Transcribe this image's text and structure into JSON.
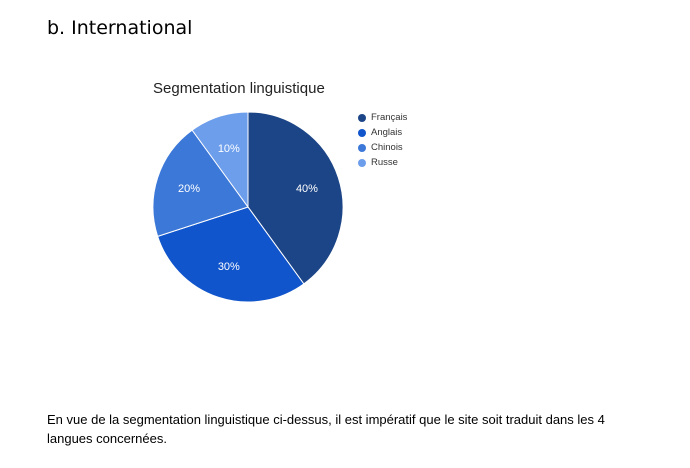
{
  "heading": "b. International",
  "chart_data": {
    "type": "pie",
    "title": "Segmentation linguistique",
    "categories": [
      "Français",
      "Anglais",
      "Chinois",
      "Russe"
    ],
    "values": [
      40,
      30,
      20,
      10
    ],
    "labels": [
      "40%",
      "30%",
      "20%",
      "10%"
    ],
    "colors": [
      "#1c4587",
      "#1155cc",
      "#3c78d8",
      "#6d9eeb"
    ],
    "legend_position": "right"
  },
  "paragraph": "En vue de la segmentation linguistique ci-dessus, il est impératif que le site soit traduit dans les 4 langues concernées."
}
